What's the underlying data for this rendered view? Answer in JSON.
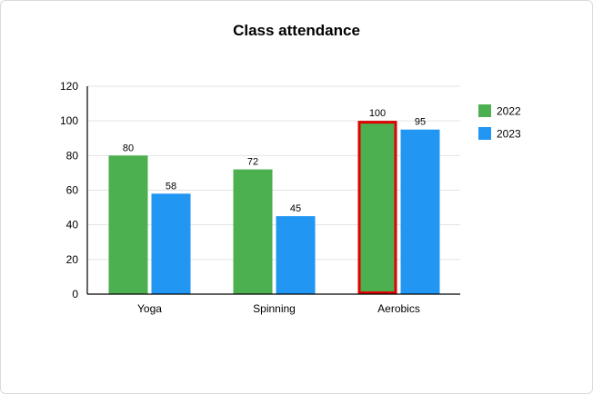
{
  "chart_data": {
    "type": "bar",
    "title": "Class attendance",
    "xlabel": "",
    "ylabel": "",
    "categories": [
      "Yoga",
      "Spinning",
      "Aerobics"
    ],
    "series": [
      {
        "name": "2022",
        "values": [
          80,
          72,
          100
        ],
        "color": "#4CAF50"
      },
      {
        "name": "2023",
        "values": [
          58,
          45,
          95
        ],
        "color": "#2196F3"
      }
    ],
    "ylim": [
      0,
      120
    ],
    "yticks": [
      0,
      20,
      40,
      60,
      80,
      100,
      120
    ],
    "grid": true,
    "legend": "right",
    "highlight": {
      "category": "Aerobics",
      "series": "2022",
      "color": "#e00000"
    }
  }
}
